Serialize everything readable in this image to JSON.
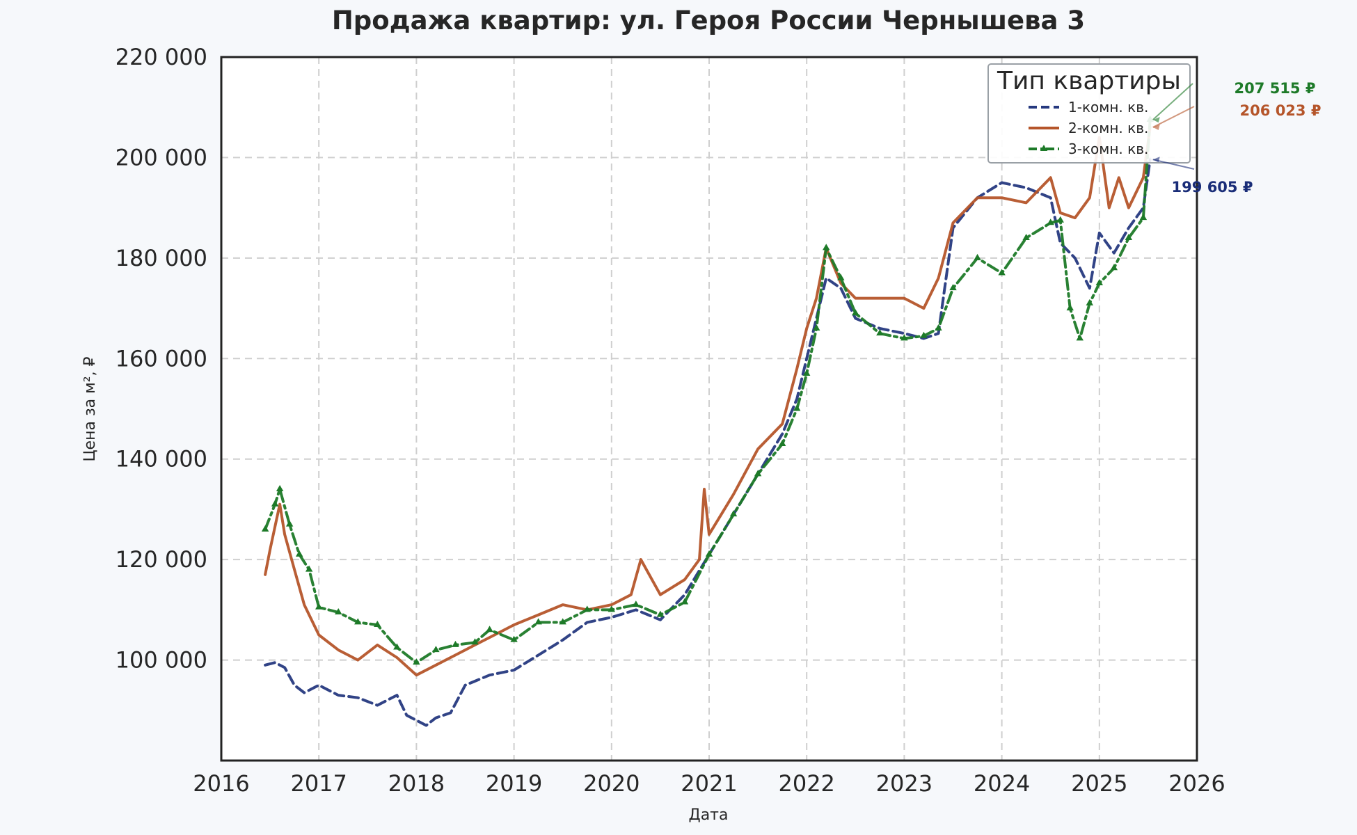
{
  "chart_data": {
    "type": "line",
    "title": "Продажа квартир: ул. Героя России Чернышева 3",
    "xlabel": "Дата",
    "ylabel": "Цена за м², ₽",
    "xlim": [
      2016,
      2026
    ],
    "ylim": [
      80000,
      220000
    ],
    "x_ticks": [
      2016,
      2017,
      2018,
      2019,
      2020,
      2021,
      2022,
      2023,
      2024,
      2025,
      2026
    ],
    "x_tick_labels": [
      "2016",
      "2017",
      "2018",
      "2019",
      "2020",
      "2021",
      "2022",
      "2023",
      "2024",
      "2025",
      "2026"
    ],
    "y_ticks": [
      100000,
      120000,
      140000,
      160000,
      180000,
      200000,
      220000
    ],
    "y_tick_labels": [
      "100 000",
      "120 000",
      "140 000",
      "160 000",
      "180 000",
      "200 000",
      "220 000"
    ],
    "grid": true,
    "legend": {
      "title": "Тип квартиры",
      "placement": "top-right"
    },
    "series": [
      {
        "name": "1-комн. кв.",
        "color": "#26397f",
        "style": "dashed",
        "x": [
          2016.45,
          2016.55,
          2016.65,
          2016.75,
          2016.85,
          2017.0,
          2017.2,
          2017.4,
          2017.6,
          2017.8,
          2017.9,
          2018.0,
          2018.1,
          2018.2,
          2018.35,
          2018.5,
          2018.75,
          2019.0,
          2019.25,
          2019.5,
          2019.75,
          2020.0,
          2020.25,
          2020.5,
          2020.75,
          2021.0,
          2021.25,
          2021.5,
          2021.75,
          2021.9,
          2022.0,
          2022.1,
          2022.2,
          2022.35,
          2022.5,
          2022.75,
          2023.0,
          2023.2,
          2023.35,
          2023.5,
          2023.75,
          2024.0,
          2024.25,
          2024.5,
          2024.6,
          2024.75,
          2024.9,
          2025.0,
          2025.15,
          2025.3,
          2025.45,
          2025.52
        ],
        "y": [
          99000,
          99500,
          98500,
          95000,
          93500,
          95000,
          93000,
          92500,
          91000,
          93000,
          89000,
          88000,
          87000,
          88500,
          89500,
          95000,
          97000,
          98000,
          101000,
          104000,
          107500,
          108500,
          110000,
          108000,
          113000,
          121000,
          129000,
          137000,
          145000,
          152000,
          160000,
          168000,
          176000,
          174000,
          168000,
          166000,
          165000,
          164000,
          165000,
          186000,
          192000,
          195000,
          194000,
          192000,
          183000,
          180000,
          174000,
          185000,
          181000,
          186000,
          190000,
          199605
        ]
      },
      {
        "name": "2-комн. кв.",
        "color": "#b5552a",
        "style": "solid",
        "x": [
          2016.45,
          2016.5,
          2016.6,
          2016.65,
          2016.75,
          2016.85,
          2017.0,
          2017.2,
          2017.4,
          2017.6,
          2017.8,
          2018.0,
          2018.2,
          2018.4,
          2018.6,
          2018.8,
          2019.0,
          2019.25,
          2019.5,
          2019.75,
          2020.0,
          2020.2,
          2020.3,
          2020.5,
          2020.75,
          2020.9,
          2020.95,
          2021.0,
          2021.25,
          2021.5,
          2021.75,
          2021.9,
          2022.0,
          2022.1,
          2022.2,
          2022.35,
          2022.5,
          2022.75,
          2023.0,
          2023.2,
          2023.35,
          2023.5,
          2023.75,
          2024.0,
          2024.25,
          2024.5,
          2024.6,
          2024.75,
          2024.9,
          2025.0,
          2025.1,
          2025.2,
          2025.3,
          2025.45,
          2025.52
        ],
        "y": [
          117000,
          122000,
          131000,
          125000,
          118000,
          111000,
          105000,
          102000,
          100000,
          103000,
          100500,
          97000,
          99000,
          101000,
          103000,
          105000,
          107000,
          109000,
          111000,
          110000,
          111000,
          113000,
          120000,
          113000,
          116000,
          120000,
          134000,
          125000,
          133000,
          142000,
          147000,
          158000,
          166000,
          172000,
          182000,
          175000,
          172000,
          172000,
          172000,
          170000,
          176000,
          187000,
          192000,
          192000,
          191000,
          196000,
          189000,
          188000,
          192000,
          204000,
          190000,
          196000,
          190000,
          196000,
          206023
        ]
      },
      {
        "name": "3-комн. кв.",
        "color": "#1d7a28",
        "style": "dashdot-triangle",
        "x": [
          2016.45,
          2016.55,
          2016.6,
          2016.7,
          2016.8,
          2016.9,
          2017.0,
          2017.2,
          2017.4,
          2017.6,
          2017.8,
          2018.0,
          2018.2,
          2018.4,
          2018.6,
          2018.75,
          2019.0,
          2019.25,
          2019.5,
          2019.75,
          2020.0,
          2020.25,
          2020.5,
          2020.75,
          2021.0,
          2021.25,
          2021.5,
          2021.75,
          2021.9,
          2022.0,
          2022.1,
          2022.2,
          2022.35,
          2022.5,
          2022.75,
          2023.0,
          2023.2,
          2023.35,
          2023.5,
          2023.75,
          2024.0,
          2024.25,
          2024.5,
          2024.6,
          2024.7,
          2024.8,
          2024.9,
          2025.0,
          2025.15,
          2025.3,
          2025.45,
          2025.52
        ],
        "y": [
          126000,
          131000,
          134000,
          127000,
          121000,
          118000,
          110500,
          109500,
          107500,
          107000,
          102500,
          99500,
          102000,
          103000,
          103500,
          106000,
          104000,
          107500,
          107500,
          110000,
          110000,
          111000,
          109000,
          111500,
          121000,
          129000,
          137000,
          143000,
          150000,
          157000,
          166000,
          182000,
          176000,
          169000,
          165000,
          164000,
          164500,
          166000,
          174000,
          180000,
          177000,
          184000,
          187000,
          187500,
          170000,
          164000,
          171000,
          175000,
          178000,
          184000,
          188000,
          207515
        ]
      }
    ],
    "annotations": [
      {
        "text": "207 515 ₽",
        "series": "3-комн. кв.",
        "x": 2025.52,
        "y": 207515,
        "color": "#1d7a28"
      },
      {
        "text": "206 023 ₽",
        "series": "2-комн. кв.",
        "x": 2025.52,
        "y": 206023,
        "color": "#b5552a"
      },
      {
        "text": "199 605 ₽",
        "series": "1-комн. кв.",
        "x": 2025.52,
        "y": 199605,
        "color": "#1a2d78"
      }
    ]
  }
}
